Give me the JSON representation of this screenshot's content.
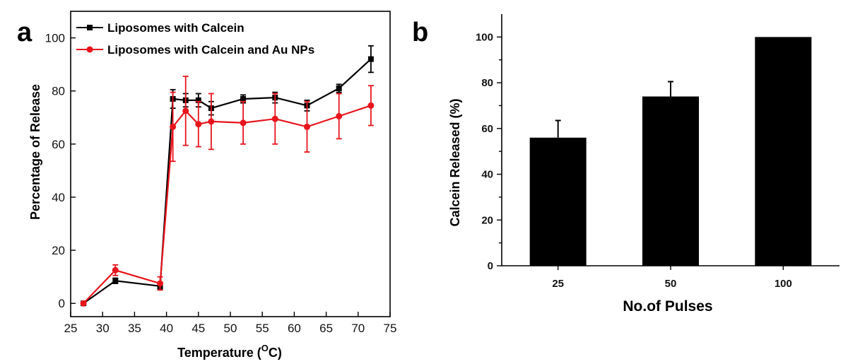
{
  "panels": {
    "a": {
      "letter": "a"
    },
    "b": {
      "letter": "b"
    }
  },
  "chart_data": [
    {
      "type": "line",
      "panel": "a",
      "title": "",
      "xlabel_main": "Temperature (",
      "xlabel_sup": "O",
      "xlabel_end": "C)",
      "ylabel": "Percentage of Release",
      "xlim": [
        25,
        75
      ],
      "ylim": [
        -5,
        110
      ],
      "xticks": [
        25,
        30,
        35,
        40,
        45,
        50,
        55,
        60,
        65,
        70,
        75
      ],
      "yticks": [
        0,
        20,
        40,
        60,
        80,
        100
      ],
      "legend_position": "top-left",
      "series": [
        {
          "name": "Liposomes with Calcein",
          "color": "#000000",
          "marker": "square",
          "x": [
            27,
            32,
            39,
            41,
            43,
            45,
            47,
            52,
            57,
            62,
            67,
            72
          ],
          "y": [
            0,
            8.5,
            6.5,
            77,
            76.5,
            76.5,
            73.5,
            77,
            77.5,
            74.5,
            81,
            92
          ],
          "err": [
            0.5,
            1.0,
            1.0,
            3.5,
            2.5,
            2.5,
            2.5,
            1.5,
            2.0,
            2.0,
            1.5,
            5.0
          ]
        },
        {
          "name": "Liposomes with Calcein and Au NPs",
          "color": "#e8141c",
          "marker": "circle",
          "x": [
            27,
            32,
            39,
            41,
            43,
            45,
            47,
            52,
            57,
            62,
            67,
            72
          ],
          "y": [
            0,
            12.5,
            7.5,
            66.5,
            72.5,
            67.5,
            68.5,
            68,
            69.5,
            66.5,
            70.5,
            74.5
          ],
          "err": [
            0.5,
            2.0,
            2.5,
            13.0,
            13.0,
            8.5,
            10.5,
            8.0,
            9.5,
            9.5,
            8.5,
            7.5
          ]
        }
      ]
    },
    {
      "type": "bar",
      "panel": "b",
      "title": "",
      "xlabel": "No.of Pulses",
      "ylabel": "Calcein Released (%)",
      "categories": [
        "25",
        "50",
        "100"
      ],
      "values": [
        56,
        74,
        100
      ],
      "errors": [
        7.5,
        6.5,
        0
      ],
      "ylim": [
        0,
        110
      ],
      "yticks": [
        0,
        20,
        40,
        60,
        80,
        100
      ],
      "bar_color": "#000000"
    }
  ]
}
